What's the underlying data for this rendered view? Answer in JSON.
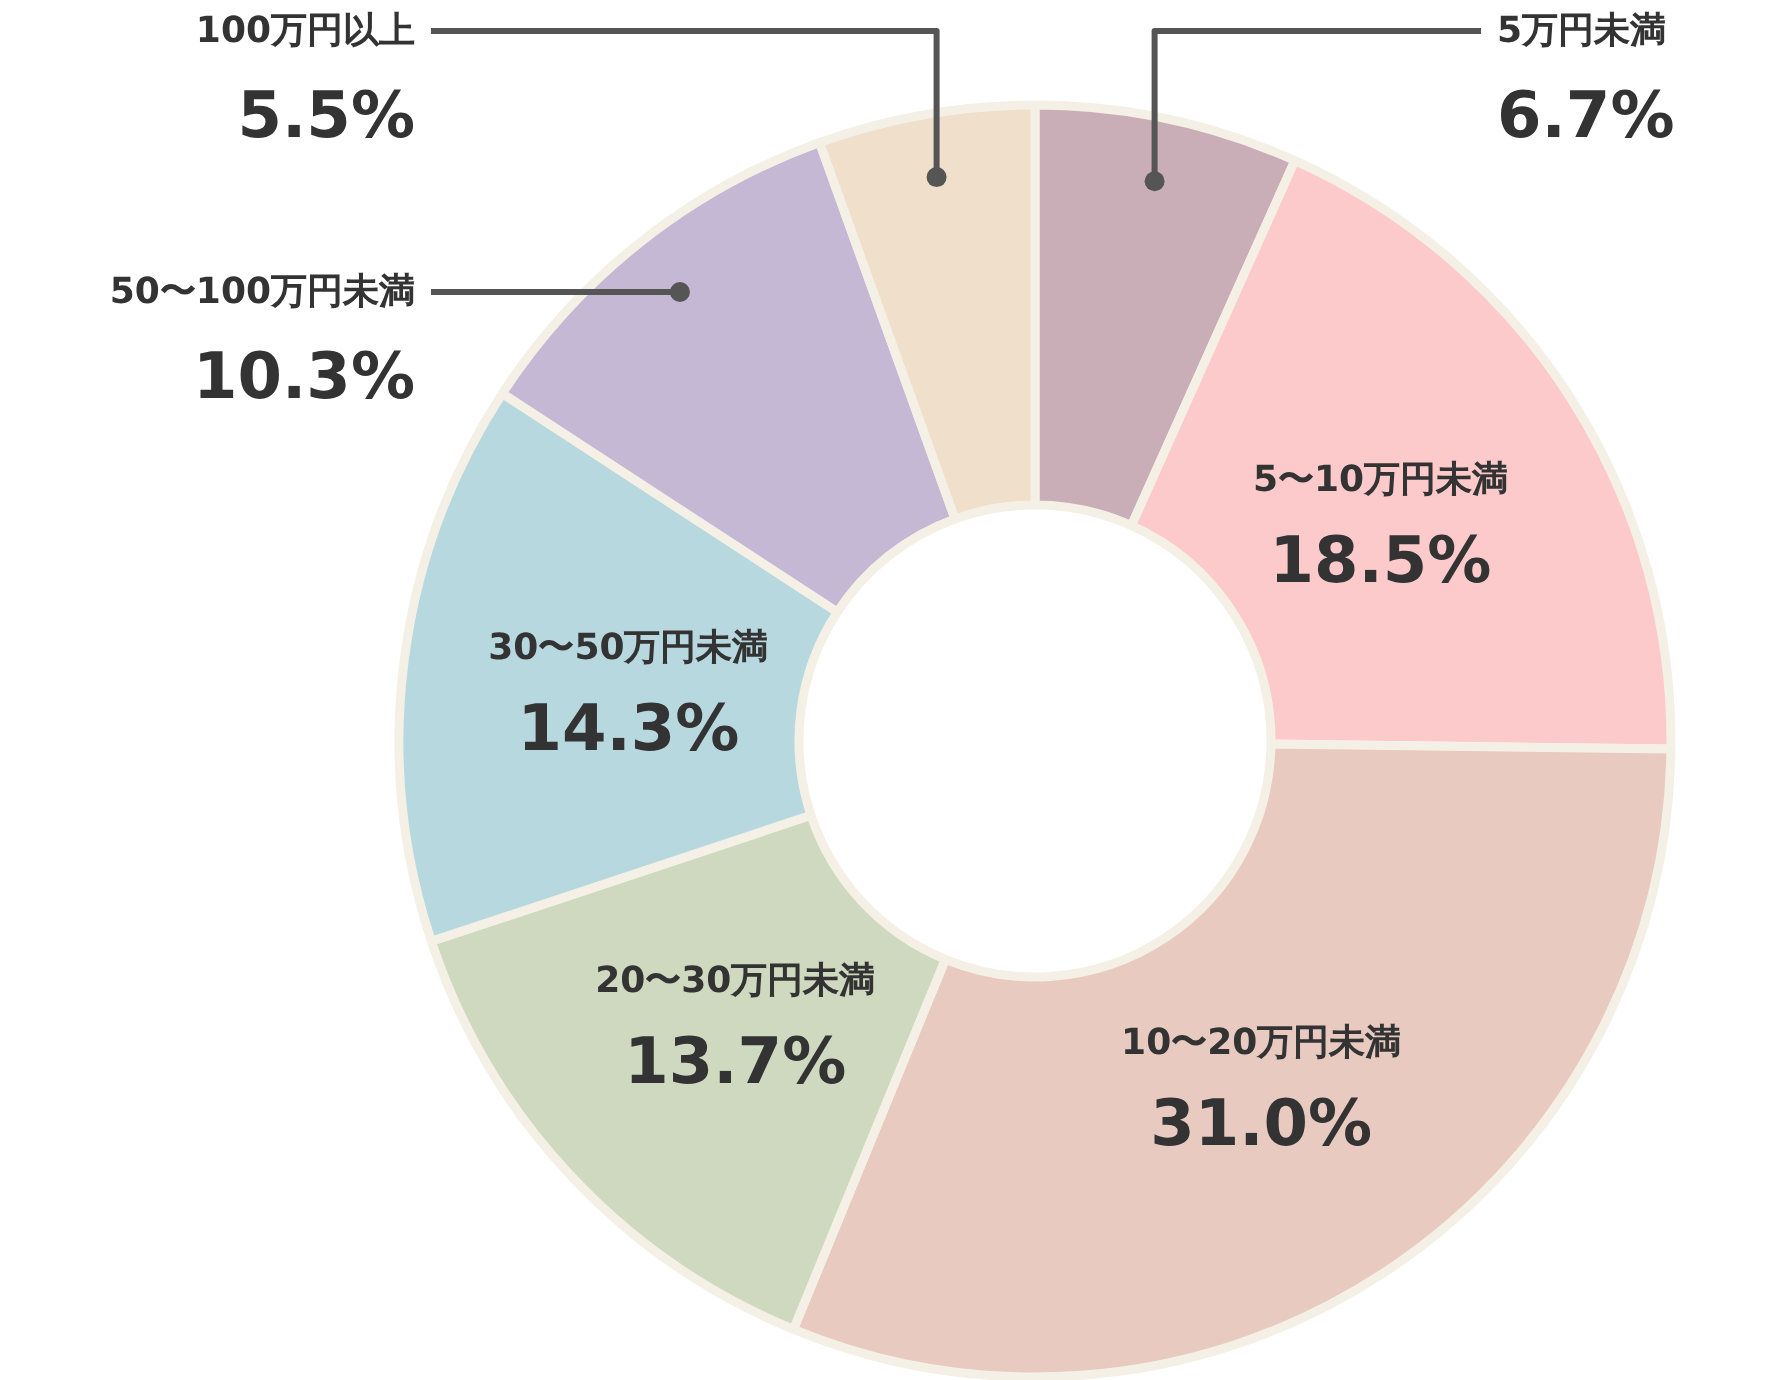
{
  "chart_data": {
    "type": "donut",
    "categories": [
      "5万円未満",
      "5〜10万円未満",
      "10〜20万円未満",
      "20〜30万円未満",
      "30〜50万円未満",
      "50〜100万円未満",
      "100万円以上"
    ],
    "values": [
      6.7,
      18.5,
      31.0,
      13.7,
      14.3,
      10.3,
      5.5
    ],
    "colors": [
      "#c9aeb8",
      "#fdcacb",
      "#e8cac0",
      "#cfd9bf",
      "#b8d8e0",
      "#c4b8d4",
      "#efdfcb"
    ],
    "value_labels": [
      "6.7%",
      "18.5%",
      "31.0%",
      "13.7%",
      "14.3%",
      "10.3%",
      "5.5%"
    ]
  }
}
